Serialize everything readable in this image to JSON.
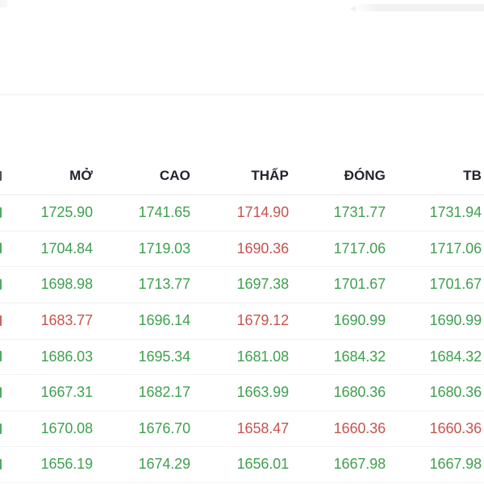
{
  "colors": {
    "up": "#3FA04E",
    "down": "#C5544F",
    "header": "#20242C"
  },
  "icons": {
    "top_right": "scrollbar-thumb",
    "left_edge": "clipped-column-sliver"
  },
  "table": {
    "columns": [
      {
        "key": "open",
        "label": "MỞ"
      },
      {
        "key": "high",
        "label": "CAO"
      },
      {
        "key": "low",
        "label": "THẤP"
      },
      {
        "key": "close",
        "label": "ĐÓNG"
      },
      {
        "key": "avg",
        "label": "TB"
      }
    ],
    "rows": [
      {
        "sliver": "up",
        "values": [
          "1725.90",
          "1741.65",
          "1714.90",
          "1731.77",
          "1731.94"
        ],
        "colors": [
          "up",
          "up",
          "down",
          "up",
          "up"
        ]
      },
      {
        "sliver": "up",
        "values": [
          "1704.84",
          "1719.03",
          "1690.36",
          "1717.06",
          "1717.06"
        ],
        "colors": [
          "up",
          "up",
          "down",
          "up",
          "up"
        ]
      },
      {
        "sliver": "up",
        "values": [
          "1698.98",
          "1713.77",
          "1697.38",
          "1701.67",
          "1701.67"
        ],
        "colors": [
          "up",
          "up",
          "up",
          "up",
          "up"
        ]
      },
      {
        "sliver": "down",
        "values": [
          "1683.77",
          "1696.14",
          "1679.12",
          "1690.99",
          "1690.99"
        ],
        "colors": [
          "down",
          "up",
          "down",
          "up",
          "up"
        ]
      },
      {
        "sliver": "up",
        "values": [
          "1686.03",
          "1695.34",
          "1681.08",
          "1684.32",
          "1684.32"
        ],
        "colors": [
          "up",
          "up",
          "up",
          "up",
          "up"
        ]
      },
      {
        "sliver": "up",
        "values": [
          "1667.31",
          "1682.17",
          "1663.99",
          "1680.36",
          "1680.36"
        ],
        "colors": [
          "up",
          "up",
          "up",
          "up",
          "up"
        ]
      },
      {
        "sliver": "up",
        "values": [
          "1670.08",
          "1676.70",
          "1658.47",
          "1660.36",
          "1660.36"
        ],
        "colors": [
          "up",
          "up",
          "down",
          "down",
          "down"
        ]
      },
      {
        "sliver": "up",
        "values": [
          "1656.19",
          "1674.29",
          "1656.01",
          "1667.98",
          "1667.98"
        ],
        "colors": [
          "up",
          "up",
          "up",
          "up",
          "up"
        ]
      }
    ]
  }
}
